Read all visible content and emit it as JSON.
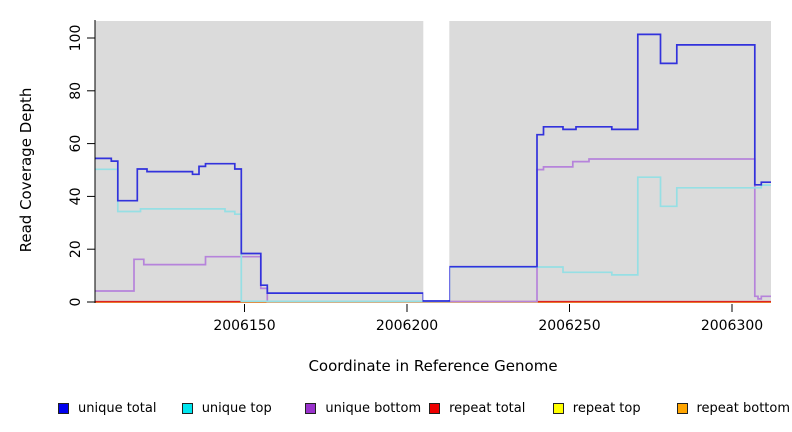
{
  "chart_data": {
    "type": "step-line",
    "title": "",
    "xlabel": "Coordinate in Reference Genome",
    "ylabel": "Read Coverage Depth",
    "xlim": [
      2006104,
      2006312
    ],
    "ylim": [
      0,
      106
    ],
    "x_ticks": [
      2006150,
      2006200,
      2006250,
      2006300
    ],
    "y_ticks": [
      0,
      20,
      40,
      60,
      80,
      100
    ],
    "grid": "off",
    "plot_background": "#dbdbdb",
    "gap_region": {
      "x_start": 2006205,
      "x_end": 2006213,
      "color": "#ffffff"
    },
    "legend_position": "bottom",
    "series": [
      {
        "name": "unique total",
        "color": "#3232dc",
        "legend_color": "#0000ee",
        "points": [
          [
            2006104,
            54
          ],
          [
            2006109,
            53
          ],
          [
            2006111,
            38
          ],
          [
            2006117,
            50
          ],
          [
            2006120,
            49
          ],
          [
            2006134,
            48
          ],
          [
            2006136,
            51
          ],
          [
            2006138,
            52
          ],
          [
            2006147,
            50
          ],
          [
            2006149,
            18
          ],
          [
            2006155,
            6
          ],
          [
            2006157,
            3
          ],
          [
            2006205,
            0
          ],
          [
            2006213,
            13
          ],
          [
            2006240,
            63
          ],
          [
            2006242,
            66
          ],
          [
            2006248,
            65
          ],
          [
            2006252,
            66
          ],
          [
            2006263,
            65
          ],
          [
            2006271,
            101
          ],
          [
            2006278,
            90
          ],
          [
            2006283,
            97
          ],
          [
            2006307,
            44
          ],
          [
            2006309,
            45
          ]
        ]
      },
      {
        "name": "unique top",
        "color": "#96dfe4",
        "legend_color": "#00e5ee",
        "points": [
          [
            2006104,
            50
          ],
          [
            2006111,
            34
          ],
          [
            2006118,
            35
          ],
          [
            2006144,
            34
          ],
          [
            2006147,
            33
          ],
          [
            2006149,
            0
          ],
          [
            2006213,
            13
          ],
          [
            2006248,
            11
          ],
          [
            2006263,
            10
          ],
          [
            2006271,
            47
          ],
          [
            2006278,
            36
          ],
          [
            2006283,
            43
          ],
          [
            2006309,
            44
          ]
        ]
      },
      {
        "name": "unique bottom",
        "color": "#b683db",
        "legend_color": "#9a32cd",
        "points": [
          [
            2006104,
            4
          ],
          [
            2006116,
            16
          ],
          [
            2006119,
            14
          ],
          [
            2006138,
            17
          ],
          [
            2006155,
            5
          ],
          [
            2006157,
            0
          ],
          [
            2006240,
            50
          ],
          [
            2006242,
            51
          ],
          [
            2006251,
            53
          ],
          [
            2006256,
            54
          ],
          [
            2006307,
            2
          ],
          [
            2006308,
            1
          ],
          [
            2006309,
            2
          ]
        ]
      },
      {
        "name": "repeat total",
        "color": "#dd2222",
        "legend_color": "#ee0000",
        "points": [
          [
            2006104,
            0
          ]
        ]
      },
      {
        "name": "repeat top",
        "color": "#f2e822",
        "legend_color": "#ffff00",
        "points": [
          [
            2006104,
            0
          ]
        ]
      },
      {
        "name": "repeat bottom",
        "color": "#ff9e1f",
        "legend_color": "#ffa500",
        "points": [
          [
            2006104,
            0
          ]
        ]
      }
    ]
  }
}
